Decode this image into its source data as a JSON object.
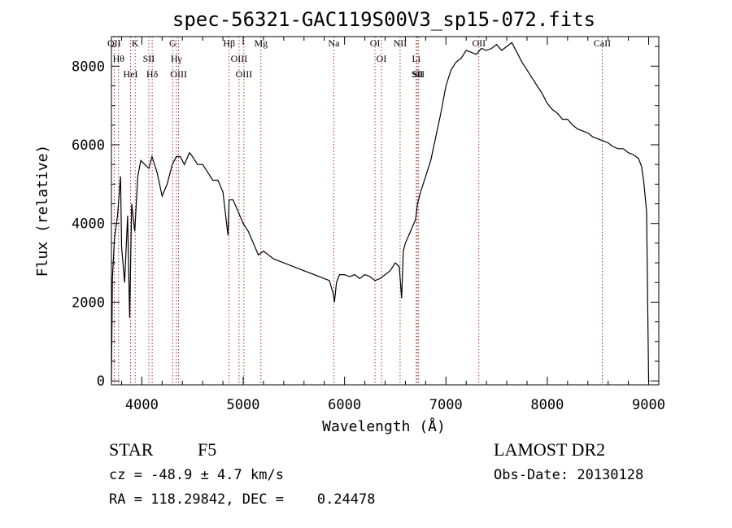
{
  "chart_data": {
    "type": "line",
    "title": "spec-56321-GAC119S00V3_sp15-072.fits",
    "xlabel": "Wavelength (Å)",
    "ylabel": "Flux (relative)",
    "xlim": [
      3700,
      9100
    ],
    "ylim": [
      -100,
      8750
    ],
    "x_ticks": [
      4000,
      5000,
      6000,
      7000,
      8000,
      9000
    ],
    "y_ticks": [
      0,
      2000,
      4000,
      6000,
      8000
    ],
    "series": [
      {
        "x": [
          3700,
          3710,
          3730,
          3760,
          3790,
          3800,
          3830,
          3860,
          3880,
          3900,
          3930,
          3960,
          3990,
          4030,
          4070,
          4100,
          4150,
          4200,
          4250,
          4300,
          4340,
          4380,
          4420,
          4470,
          4500,
          4550,
          4600,
          4650,
          4700,
          4750,
          4800,
          4850,
          4861,
          4900,
          4950,
          5000,
          5050,
          5100,
          5150,
          5200,
          5300,
          5400,
          5500,
          5600,
          5700,
          5800,
          5850,
          5890,
          5900,
          5920,
          5950,
          6000,
          6050,
          6100,
          6150,
          6200,
          6250,
          6300,
          6350,
          6400,
          6450,
          6500,
          6540,
          6563,
          6580,
          6600,
          6650,
          6700,
          6720,
          6750,
          6800,
          6850,
          6900,
          6950,
          7000,
          7050,
          7100,
          7150,
          7200,
          7250,
          7300,
          7350,
          7400,
          7450,
          7500,
          7550,
          7600,
          7650,
          7700,
          7750,
          7800,
          7850,
          7900,
          7950,
          8000,
          8050,
          8100,
          8150,
          8200,
          8250,
          8300,
          8350,
          8400,
          8450,
          8500,
          8550,
          8600,
          8650,
          8700,
          8750,
          8800,
          8850,
          8900,
          8930,
          8950,
          8980,
          8990,
          9000,
          9010
        ],
        "y": [
          0,
          2600,
          3600,
          4200,
          5200,
          3400,
          2500,
          4200,
          1600,
          4500,
          3800,
          5200,
          5600,
          5500,
          5400,
          5700,
          5300,
          4700,
          5000,
          5500,
          5700,
          5700,
          5500,
          5800,
          5700,
          5500,
          5500,
          5300,
          5100,
          5100,
          4800,
          3700,
          4600,
          4600,
          4300,
          4000,
          3800,
          3500,
          3200,
          3300,
          3100,
          3000,
          2900,
          2800,
          2700,
          2600,
          2550,
          2200,
          2000,
          2500,
          2700,
          2700,
          2650,
          2700,
          2600,
          2700,
          2650,
          2550,
          2600,
          2700,
          2800,
          3000,
          2900,
          2100,
          3300,
          3500,
          3800,
          4100,
          4500,
          4800,
          5200,
          5600,
          6200,
          6800,
          7500,
          7900,
          8100,
          8200,
          8400,
          8350,
          8300,
          8450,
          8400,
          8450,
          8550,
          8400,
          8500,
          8600,
          8350,
          8100,
          7900,
          7700,
          7500,
          7300,
          7050,
          6900,
          6800,
          6650,
          6650,
          6500,
          6400,
          6350,
          6300,
          6200,
          6150,
          6100,
          6050,
          5950,
          5900,
          5900,
          5800,
          5750,
          5650,
          5450,
          5100,
          4300,
          2000,
          0,
          0
        ]
      }
    ],
    "lines": [
      {
        "wavelength": 3727,
        "label": "OII"
      },
      {
        "wavelength": 3771,
        "label": "Hθ"
      },
      {
        "wavelength": 3889,
        "label": "HeI"
      },
      {
        "wavelength": 3934,
        "label": "K"
      },
      {
        "wavelength": 4069,
        "label": "SII"
      },
      {
        "wavelength": 4102,
        "label": "Hδ"
      },
      {
        "wavelength": 4304,
        "label": "G"
      },
      {
        "wavelength": 4341,
        "label": "Hγ"
      },
      {
        "wavelength": 4363,
        "label": "OIII"
      },
      {
        "wavelength": 4861,
        "label": "Hβ"
      },
      {
        "wavelength": 4959,
        "label": "OIII"
      },
      {
        "wavelength": 5007,
        "label": "OIII"
      },
      {
        "wavelength": 5175,
        "label": "Mg"
      },
      {
        "wavelength": 5894,
        "label": "Na"
      },
      {
        "wavelength": 6300,
        "label": "OI"
      },
      {
        "wavelength": 6364,
        "label": "OI"
      },
      {
        "wavelength": 6548,
        "label": "NII"
      },
      {
        "wavelength": 6707,
        "label": "Li"
      },
      {
        "wavelength": 6717,
        "label": "SII"
      },
      {
        "wavelength": 6731,
        "label": "SII"
      },
      {
        "wavelength": 7325,
        "label": "OII"
      },
      {
        "wavelength": 8542,
        "label": "CaII"
      }
    ]
  },
  "info": {
    "class": "STAR",
    "subclass": "F5",
    "survey": "LAMOST DR2",
    "cz": "cz = -48.9 ± 4.7 km/s",
    "obs_date": "Obs-Date: 20130128",
    "coords": "RA = 118.29842, DEC =    0.24478"
  }
}
